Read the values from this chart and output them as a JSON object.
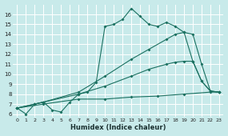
{
  "xlabel": "Humidex (Indice chaleur)",
  "background_color": "#c8eaea",
  "grid_color": "#ffffff",
  "line_color": "#1a7060",
  "xlim": [
    -0.5,
    23.5
  ],
  "ylim": [
    5.7,
    17.0
  ],
  "yticks": [
    6,
    7,
    8,
    9,
    10,
    11,
    12,
    13,
    14,
    15,
    16
  ],
  "xticks": [
    0,
    1,
    2,
    3,
    4,
    5,
    6,
    7,
    8,
    9,
    10,
    11,
    12,
    13,
    14,
    15,
    16,
    17,
    18,
    19,
    20,
    21,
    22,
    23
  ],
  "series1": [
    [
      0,
      6.6
    ],
    [
      1,
      6.0
    ],
    [
      2,
      7.0
    ],
    [
      3,
      7.2
    ],
    [
      4,
      6.4
    ],
    [
      5,
      6.2
    ],
    [
      6,
      7.2
    ],
    [
      7,
      8.0
    ],
    [
      8,
      8.2
    ],
    [
      9,
      9.2
    ],
    [
      10,
      14.8
    ],
    [
      11,
      15.0
    ],
    [
      12,
      15.5
    ],
    [
      13,
      16.6
    ],
    [
      14,
      15.8
    ],
    [
      15,
      15.0
    ],
    [
      16,
      14.8
    ],
    [
      17,
      15.2
    ],
    [
      18,
      14.8
    ],
    [
      19,
      14.2
    ],
    [
      20,
      11.3
    ],
    [
      21,
      9.3
    ],
    [
      22,
      8.3
    ],
    [
      23,
      8.2
    ]
  ],
  "series2": [
    [
      0,
      6.6
    ],
    [
      2,
      7.0
    ],
    [
      3,
      7.2
    ],
    [
      7,
      8.2
    ],
    [
      10,
      9.8
    ],
    [
      13,
      11.5
    ],
    [
      15,
      12.5
    ],
    [
      17,
      13.5
    ],
    [
      18,
      14.0
    ],
    [
      19,
      14.2
    ],
    [
      20,
      14.0
    ],
    [
      21,
      11.0
    ],
    [
      22,
      8.3
    ],
    [
      23,
      8.2
    ]
  ],
  "series3": [
    [
      0,
      6.6
    ],
    [
      2,
      7.0
    ],
    [
      3,
      7.2
    ],
    [
      7,
      8.0
    ],
    [
      10,
      8.8
    ],
    [
      13,
      9.8
    ],
    [
      15,
      10.5
    ],
    [
      17,
      11.0
    ],
    [
      18,
      11.2
    ],
    [
      19,
      11.3
    ],
    [
      20,
      11.3
    ],
    [
      21,
      9.3
    ],
    [
      22,
      8.3
    ],
    [
      23,
      8.2
    ]
  ],
  "series4": [
    [
      0,
      6.6
    ],
    [
      3,
      7.0
    ],
    [
      7,
      7.5
    ],
    [
      10,
      7.5
    ],
    [
      13,
      7.7
    ],
    [
      16,
      7.8
    ],
    [
      19,
      8.0
    ],
    [
      22,
      8.2
    ],
    [
      23,
      8.2
    ]
  ]
}
